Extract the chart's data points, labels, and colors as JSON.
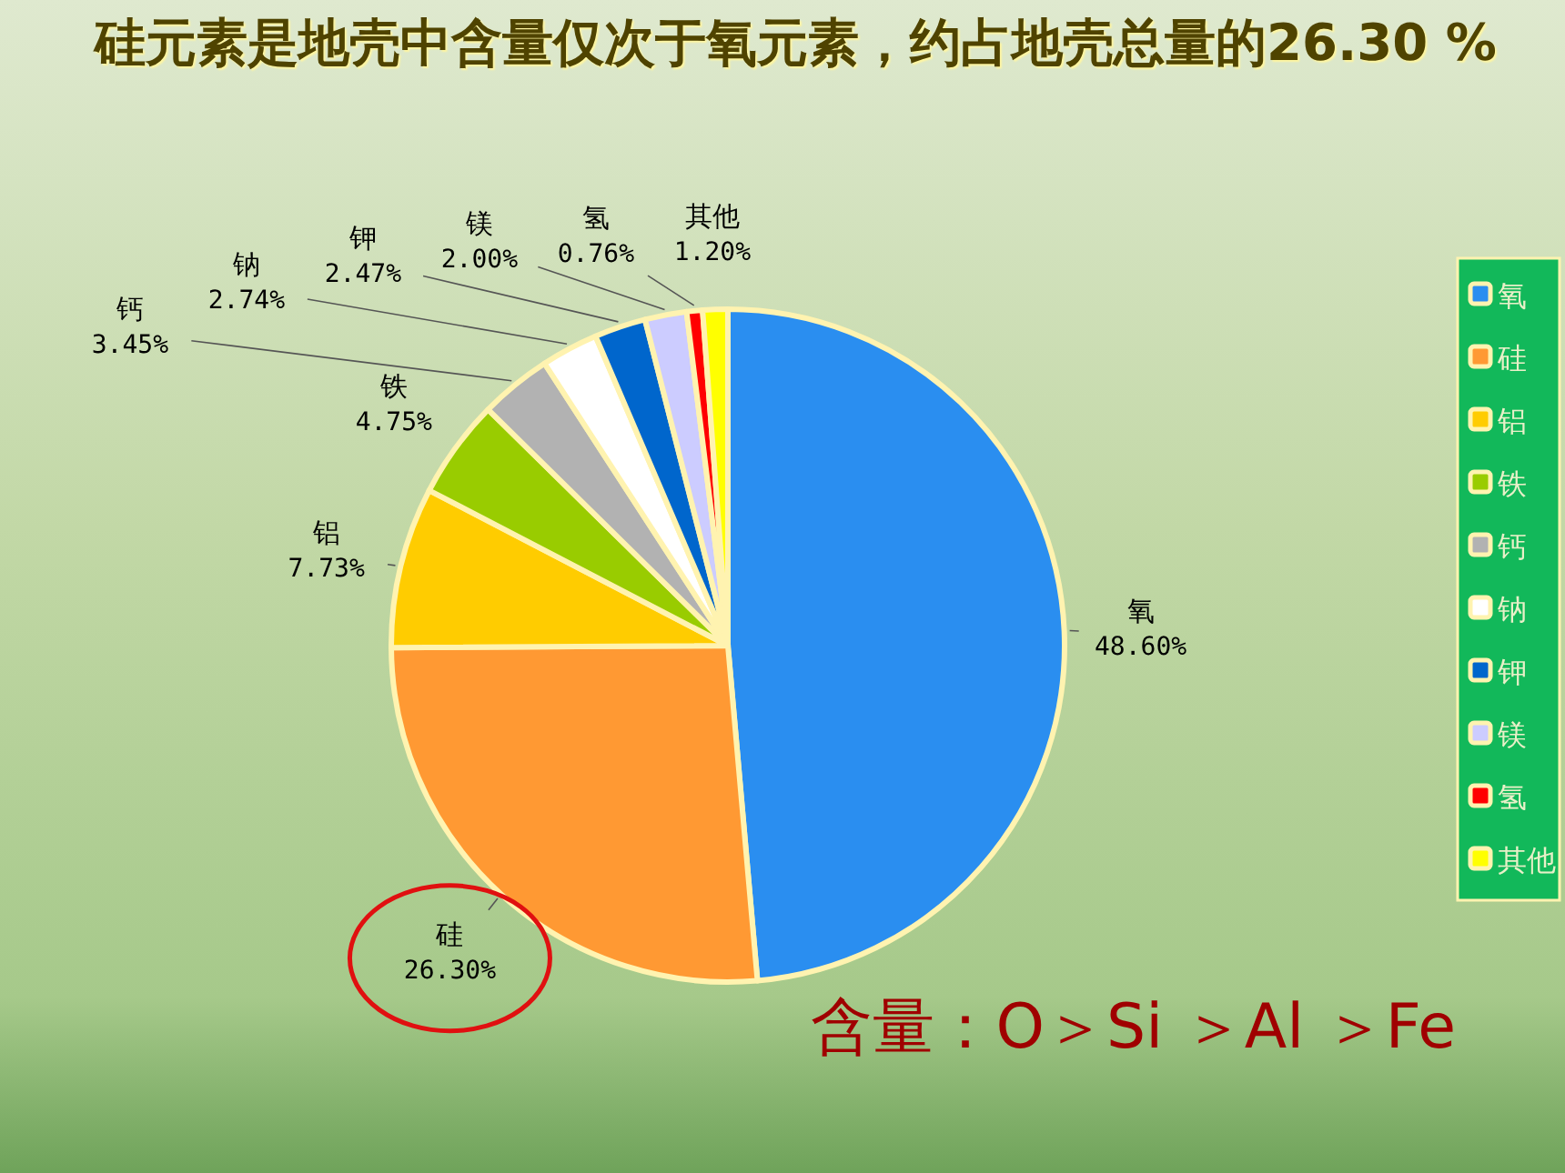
{
  "chart_data": {
    "type": "pie",
    "title": "硅元素是地壳中含量仅次于氧元素，约占地壳总量的26.30 %",
    "categories": [
      "氧",
      "硅",
      "铝",
      "铁",
      "钙",
      "钠",
      "钾",
      "镁",
      "氢",
      "其他"
    ],
    "values": [
      48.6,
      26.3,
      7.73,
      4.75,
      3.45,
      2.74,
      2.47,
      2.0,
      0.76,
      1.2
    ],
    "value_labels": [
      "48.60%",
      "26.30%",
      "7.73%",
      "4.75%",
      "3.45%",
      "2.74%",
      "2.47%",
      "2.00%",
      "0.76%",
      "1.20%"
    ],
    "colors": [
      "#2a8ef0",
      "#ff9933",
      "#ffcc00",
      "#99cc00",
      "#b2b2b2",
      "#ffffff",
      "#0066cc",
      "#ccccff",
      "#ff0000",
      "#ffff00"
    ],
    "legend": "right",
    "annotations": [
      "含量：O＞Si ＞Al ＞Fe"
    ]
  }
}
